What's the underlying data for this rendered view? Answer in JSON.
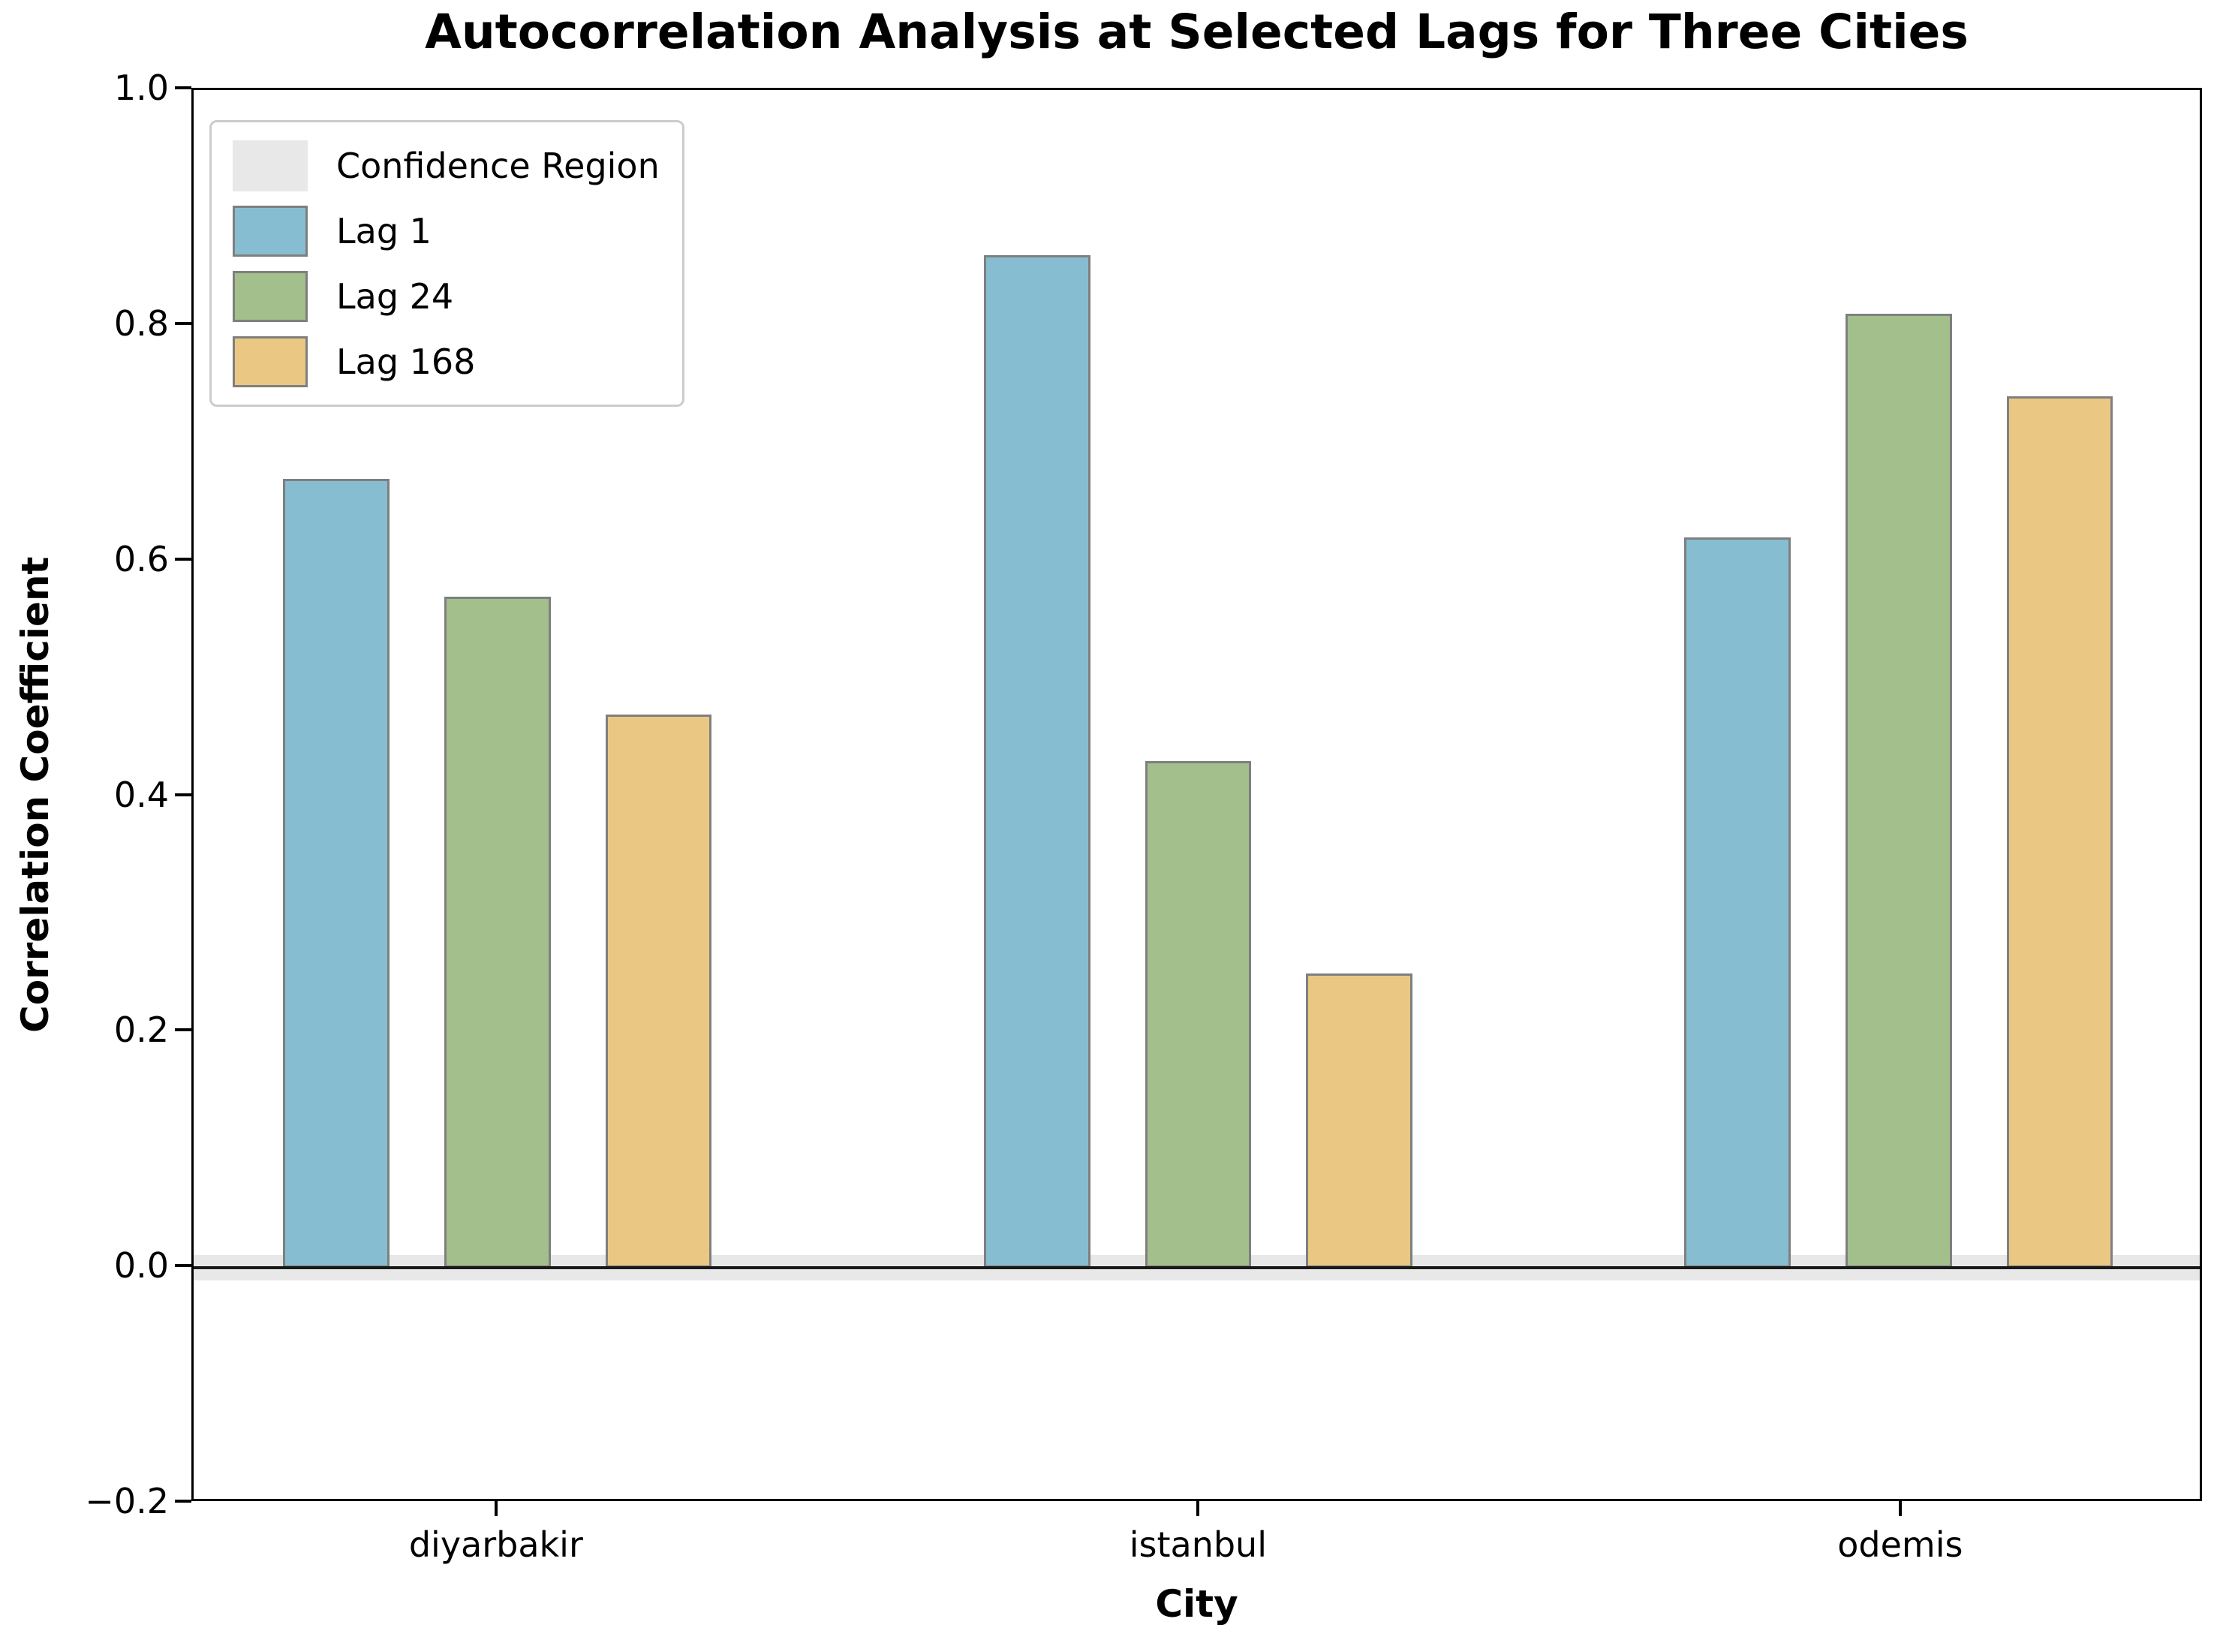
{
  "chart_data": {
    "type": "bar",
    "title": "Autocorrelation Analysis at Selected Lags for Three Cities",
    "xlabel": "City",
    "ylabel": "Correlation Coefficient",
    "categories": [
      "diyarbakir",
      "istanbul",
      "odemis"
    ],
    "series": [
      {
        "name": "Lag 1",
        "color": "#87bdd1",
        "values": [
          0.67,
          0.86,
          0.62
        ]
      },
      {
        "name": "Lag 24",
        "color": "#a3bf8c",
        "values": [
          0.57,
          0.43,
          0.81
        ]
      },
      {
        "name": "Lag 168",
        "color": "#eac883",
        "values": [
          0.47,
          0.25,
          0.74
        ]
      }
    ],
    "confidence_region": {
      "label": "Confidence Region",
      "color": "#e8e8e8",
      "lower": -0.011,
      "upper": 0.011
    },
    "zero_line_value": 0.0,
    "ylim": [
      -0.2,
      1.0
    ],
    "ytick_labels": [
      "1.0",
      "0.8",
      "0.6",
      "0.4",
      "0.2",
      "0.0",
      "−0.2"
    ],
    "ytick_values": [
      1.0,
      0.8,
      0.6,
      0.4,
      0.2,
      0.0,
      -0.2
    ],
    "legend_position": "upper left",
    "grid": false,
    "bar_edge_color": "#7f7f7f",
    "zero_line_color": "#1a1a1a"
  }
}
